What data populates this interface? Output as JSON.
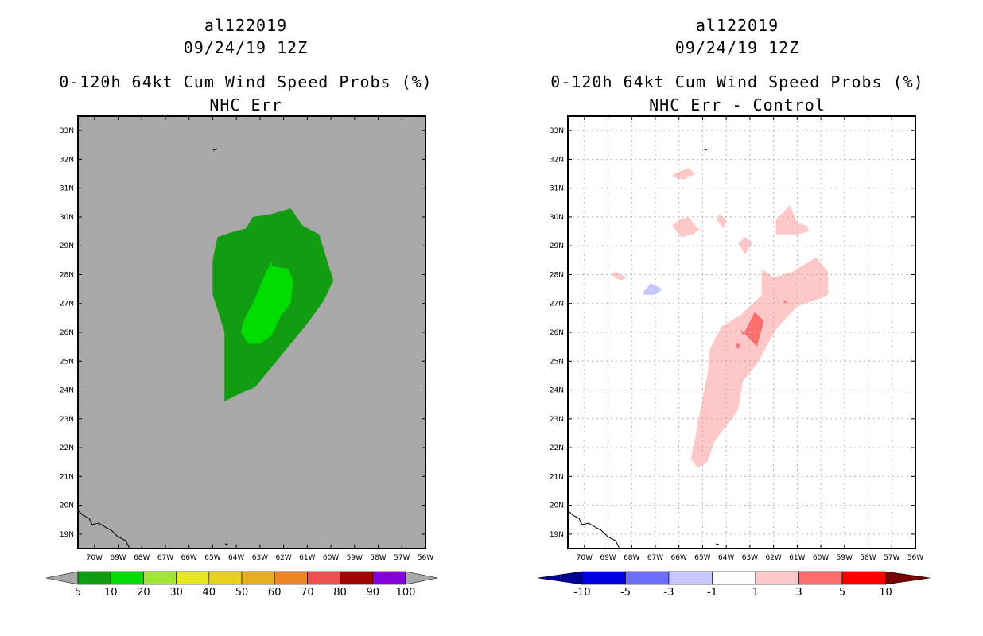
{
  "colors": {
    "land_gray": "#a8a8a8",
    "dark_green": "#129c12",
    "light_green": "#00dc00",
    "pink": "#ffc8c8",
    "red": "#ff6e6e",
    "lavender": "#c8c8ff"
  },
  "chart_data": [
    {
      "type": "heatmap",
      "storm_id": "al122019",
      "date": "09/24/19 12Z",
      "title": "0-120h 64kt Cum Wind Speed Probs (%)",
      "subtitle": "NHC Err",
      "x_tick_labels": [
        "70W",
        "69W",
        "68W",
        "67W",
        "66W",
        "65W",
        "64W",
        "63W",
        "62W",
        "61W",
        "60W",
        "59W",
        "58W",
        "57W",
        "56W"
      ],
      "y_tick_labels": [
        "33N",
        "32N",
        "31N",
        "30N",
        "29N",
        "28N",
        "27N",
        "26N",
        "25N",
        "24N",
        "23N",
        "22N",
        "21N",
        "20N",
        "19N"
      ],
      "xlim_deg_west": [
        70.7,
        56
      ],
      "ylim_deg_north": [
        18.5,
        33.5
      ],
      "grid": false,
      "colorbar": {
        "labels": [
          "5",
          "10",
          "20",
          "30",
          "40",
          "50",
          "60",
          "70",
          "80",
          "90",
          "100"
        ],
        "colors": [
          "#129c12",
          "#00dc00",
          "#a0e632",
          "#e6e61e",
          "#e6d21e",
          "#e6af1e",
          "#f08228",
          "#f05050",
          "#a00000",
          "#8200dc"
        ],
        "left_arrow": "#a8a8a8",
        "right_arrow": "#a8a8a8"
      },
      "regions": [
        {
          "name": "prob-5-10",
          "color": "#129c12",
          "polygon": [
            [
              -64.5,
              23.6
            ],
            [
              -63.8,
              23.9
            ],
            [
              -63.2,
              24.1
            ],
            [
              -62.5,
              24.8
            ],
            [
              -61.5,
              25.8
            ],
            [
              -61,
              26.3
            ],
            [
              -60.3,
              27.1
            ],
            [
              -59.9,
              27.8
            ],
            [
              -60.5,
              29.4
            ],
            [
              -61.2,
              29.7
            ],
            [
              -61.7,
              30.3
            ],
            [
              -62.5,
              30.1
            ],
            [
              -63.3,
              30
            ],
            [
              -63.6,
              29.6
            ],
            [
              -64.1,
              29.5
            ],
            [
              -64.8,
              29.3
            ],
            [
              -65,
              28.5
            ],
            [
              -65,
              27.3
            ],
            [
              -64.8,
              26.8
            ],
            [
              -64.5,
              26
            ]
          ]
        },
        {
          "name": "prob-10-20",
          "color": "#00dc00",
          "polygon": [
            [
              -63.5,
              25.6
            ],
            [
              -63,
              25.6
            ],
            [
              -62.5,
              25.9
            ],
            [
              -62.1,
              26.6
            ],
            [
              -61.7,
              27
            ],
            [
              -61.6,
              27.8
            ],
            [
              -61.8,
              28.2
            ],
            [
              -62.5,
              28.3
            ],
            [
              -62.5,
              28.5
            ],
            [
              -62.8,
              28
            ],
            [
              -63.3,
              27
            ],
            [
              -63.7,
              26.4
            ],
            [
              -63.8,
              26
            ]
          ]
        }
      ]
    },
    {
      "type": "heatmap",
      "storm_id": "al122019",
      "date": "09/24/19 12Z",
      "title": "0-120h 64kt Cum Wind Speed Probs (%)",
      "subtitle": "NHC Err - Control",
      "x_tick_labels": [
        "70W",
        "69W",
        "68W",
        "67W",
        "66W",
        "65W",
        "64W",
        "63W",
        "62W",
        "61W",
        "60W",
        "59W",
        "58W",
        "57W",
        "56W"
      ],
      "y_tick_labels": [
        "33N",
        "32N",
        "31N",
        "30N",
        "29N",
        "28N",
        "27N",
        "26N",
        "25N",
        "24N",
        "23N",
        "22N",
        "21N",
        "20N",
        "19N"
      ],
      "xlim_deg_west": [
        70.7,
        56
      ],
      "ylim_deg_north": [
        18.5,
        33.5
      ],
      "grid": true,
      "colorbar": {
        "labels": [
          "-10",
          "-5",
          "-3",
          "-1",
          "1",
          "3",
          "5",
          "10"
        ],
        "colors": [
          "#0000e0",
          "#6e6eff",
          "#c8c8ff",
          "#ffffff",
          "#ffc8c8",
          "#ff6e6e",
          "#ff0000"
        ],
        "left_arrow": "#000096",
        "right_arrow": "#780000"
      },
      "regions": [
        {
          "name": "diff-1-3-main",
          "color": "#ffc8c8",
          "polygon": [
            [
              -65.2,
              21.3
            ],
            [
              -64.8,
              21.5
            ],
            [
              -64.5,
              22.2
            ],
            [
              -63.5,
              23.3
            ],
            [
              -63.3,
              24.3
            ],
            [
              -62.7,
              24.9
            ],
            [
              -61.9,
              26.1
            ],
            [
              -61,
              26.9
            ],
            [
              -60.3,
              27.1
            ],
            [
              -59.7,
              27.3
            ],
            [
              -59.7,
              28.1
            ],
            [
              -60.2,
              28.6
            ],
            [
              -61.2,
              28.1
            ],
            [
              -62,
              27.9
            ],
            [
              -62.5,
              28.2
            ],
            [
              -62.5,
              27.3
            ],
            [
              -63.4,
              26.6
            ],
            [
              -64.2,
              26.2
            ],
            [
              -64.7,
              25.4
            ],
            [
              -64.8,
              24.5
            ],
            [
              -65.2,
              22.9
            ],
            [
              -65.3,
              22.4
            ],
            [
              -65.5,
              21.6
            ]
          ]
        },
        {
          "name": "diff-1-3-north-a",
          "color": "#ffc8c8",
          "polygon": [
            [
              -66.3,
              29.7
            ],
            [
              -66,
              29.9
            ],
            [
              -65.6,
              30
            ],
            [
              -65.2,
              29.6
            ],
            [
              -64.7,
              29.5
            ],
            [
              -65.1,
              29.6
            ],
            [
              -65.4,
              29.4
            ],
            [
              -65.9,
              29.3
            ]
          ]
        },
        {
          "name": "diff-1-3-north-b",
          "color": "#ffc8c8",
          "polygon": [
            [
              -61.9,
              29.9
            ],
            [
              -61.3,
              30.4
            ],
            [
              -61,
              29.8
            ],
            [
              -60.6,
              29.7
            ],
            [
              -60.5,
              29.5
            ],
            [
              -61,
              29.4
            ],
            [
              -61.9,
              29.4
            ]
          ]
        },
        {
          "name": "diff-1-3-north-c",
          "color": "#ffc8c8",
          "polygon": [
            [
              -66.2,
              31.5
            ],
            [
              -65.6,
              31.7
            ],
            [
              -65.3,
              31.5
            ],
            [
              -65.8,
              31.3
            ],
            [
              -66.3,
              31.4
            ]
          ]
        },
        {
          "name": "diff-1-3-north-d",
          "color": "#ffc8c8",
          "polygon": [
            [
              -63.5,
              29.1
            ],
            [
              -63.2,
              28.7
            ],
            [
              -62.9,
              29.1
            ],
            [
              -63.2,
              29.3
            ]
          ]
        },
        {
          "name": "diff-1-3-north-e",
          "color": "#ffc8c8",
          "polygon": [
            [
              -64.3,
              30.1
            ],
            [
              -64,
              29.9
            ],
            [
              -64.1,
              29.6
            ],
            [
              -64.4,
              29.9
            ]
          ]
        },
        {
          "name": "diff-1-3-west",
          "color": "#ffc8c8",
          "polygon": [
            [
              -68.7,
              28.1
            ],
            [
              -68.2,
              27.9
            ],
            [
              -68.5,
              27.8
            ],
            [
              -68.9,
              28
            ]
          ]
        },
        {
          "name": "diff-3-5-a",
          "color": "#ff6e6e",
          "polygon": [
            [
              -63.3,
              25.9
            ],
            [
              -62.8,
              26.7
            ],
            [
              -62.4,
              26.4
            ],
            [
              -62.7,
              25.5
            ],
            [
              -63.4,
              26.1
            ]
          ]
        },
        {
          "name": "diff-3-5-b",
          "color": "#ff6e6e",
          "polygon": [
            [
              -63.6,
              25.6
            ],
            [
              -63.5,
              25.4
            ],
            [
              -63.4,
              25.6
            ]
          ]
        },
        {
          "name": "diff-3-5-c",
          "color": "#ff6e6e",
          "polygon": [
            [
              -61.6,
              27.1
            ],
            [
              -61.5,
              27
            ],
            [
              -61.4,
              27.1
            ]
          ]
        },
        {
          "name": "diff-neg-1-3",
          "color": "#c8c8ff",
          "polygon": [
            [
              -67.5,
              27.4
            ],
            [
              -67.2,
              27.7
            ],
            [
              -66.7,
              27.5
            ],
            [
              -67,
              27.3
            ],
            [
              -67.5,
              27.3
            ]
          ]
        }
      ]
    }
  ]
}
